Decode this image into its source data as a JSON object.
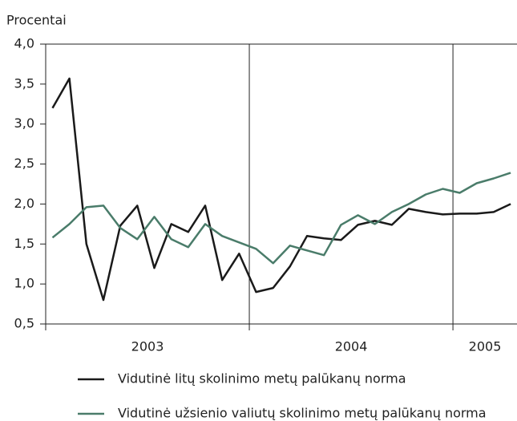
{
  "chart_data": {
    "type": "line",
    "y_axis_title": "Procentai",
    "categories": [
      "2003",
      "2003",
      "2003",
      "2003",
      "2003",
      "2003",
      "2003",
      "2003",
      "2003",
      "2003",
      "2003",
      "2003",
      "2004",
      "2004",
      "2004",
      "2004",
      "2004",
      "2004",
      "2004",
      "2004",
      "2004",
      "2004",
      "2004",
      "2004",
      "2005",
      "2005",
      "2005",
      "2005"
    ],
    "series": [
      {
        "name": "Vidutinė litų skolinimo metų palūkanų norma",
        "color": "#1a1a1a",
        "values": [
          3.2,
          3.57,
          1.5,
          0.8,
          1.73,
          1.98,
          1.2,
          1.75,
          1.65,
          1.98,
          1.05,
          1.38,
          0.9,
          0.95,
          1.22,
          1.6,
          1.57,
          1.55,
          1.74,
          1.79,
          1.74,
          1.94,
          1.9,
          1.87,
          1.88,
          1.88,
          1.9,
          2.0
        ]
      },
      {
        "name": "Vidutinė užsienio valiutų skolinimo metų palūkanų norma",
        "color": "#4a7c6a",
        "values": [
          1.58,
          1.75,
          1.96,
          1.98,
          1.7,
          1.56,
          1.84,
          1.56,
          1.46,
          1.75,
          1.6,
          1.52,
          1.44,
          1.26,
          1.48,
          1.42,
          1.36,
          1.74,
          1.86,
          1.75,
          1.9,
          2.0,
          2.12,
          2.19,
          2.14,
          2.26,
          2.32,
          2.39
        ]
      }
    ],
    "ylim": [
      0.5,
      4.0
    ],
    "yticks": [
      {
        "value": 0.5,
        "label": "0,5"
      },
      {
        "value": 1.0,
        "label": "1,0"
      },
      {
        "value": 1.5,
        "label": "1,5"
      },
      {
        "value": 2.0,
        "label": "2,0"
      },
      {
        "value": 2.5,
        "label": "2,5"
      },
      {
        "value": 3.0,
        "label": "3,0"
      },
      {
        "value": 3.5,
        "label": "3,5"
      },
      {
        "value": 4.0,
        "label": "4,0"
      }
    ]
  }
}
